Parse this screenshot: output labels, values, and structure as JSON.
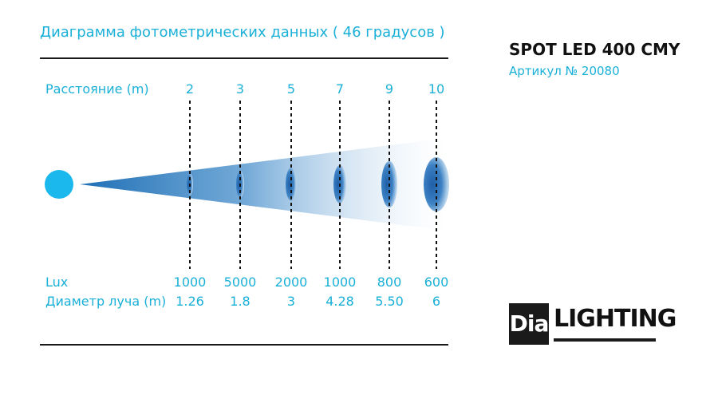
{
  "title": "Диаграмма фотометрических данных ( 46 градусов )",
  "product": {
    "name": "SPOT LED 400 CMY",
    "article": "Артикул № 20080"
  },
  "table": {
    "distance_label": "Расстояние (m)",
    "lux_label": "Lux",
    "diameter_label": "Диаметр луча (m)",
    "columns": [
      {
        "distance": "2",
        "lux": "1000",
        "diameter": "1.26"
      },
      {
        "distance": "3",
        "lux": "5000",
        "diameter": "1.8"
      },
      {
        "distance": "5",
        "lux": "2000",
        "diameter": "3"
      },
      {
        "distance": "7",
        "lux": "1000",
        "diameter": "4.28"
      },
      {
        "distance": "9",
        "lux": "800",
        "diameter": "5.50"
      },
      {
        "distance": "10",
        "lux": "600",
        "diameter": "6"
      }
    ]
  },
  "logo": {
    "box_text": "Dia",
    "text": "LIGHTING"
  },
  "colors": {
    "accent": "#1ab0d8",
    "beam": "#1e6fb5",
    "text_dark": "#111111"
  },
  "icons": {
    "light_source": "light-source-dot-icon"
  }
}
